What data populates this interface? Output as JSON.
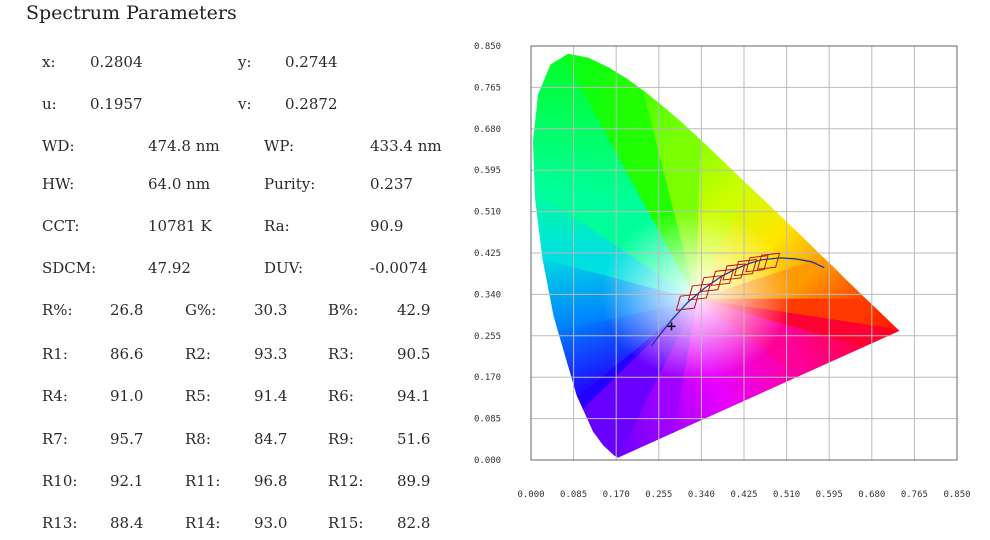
{
  "title": "Spectrum Parameters",
  "params": {
    "x": {
      "label": "x:",
      "value": "0.2804"
    },
    "y": {
      "label": "y:",
      "value": "0.2744"
    },
    "u": {
      "label": "u:",
      "value": "0.1957"
    },
    "v": {
      "label": "v:",
      "value": "0.2872"
    },
    "wd": {
      "label": "WD:",
      "value": "474.8 nm"
    },
    "wp": {
      "label": "WP:",
      "value": "433.4 nm"
    },
    "hw": {
      "label": "HW:",
      "value": "64.0 nm"
    },
    "purity": {
      "label": "Purity:",
      "value": "0.237"
    },
    "cct": {
      "label": "CCT:",
      "value": "10781 K"
    },
    "ra": {
      "label": "Ra:",
      "value": "90.9"
    },
    "sdcm": {
      "label": "SDCM:",
      "value": "47.92"
    },
    "duv": {
      "label": "DUV:",
      "value": "-0.0074"
    }
  },
  "grid": [
    [
      {
        "label": "R%:",
        "value": "26.8"
      },
      {
        "label": "G%:",
        "value": "30.3"
      },
      {
        "label": "B%:",
        "value": "42.9"
      }
    ],
    [
      {
        "label": "R1:",
        "value": "86.6"
      },
      {
        "label": "R2:",
        "value": "93.3"
      },
      {
        "label": "R3:",
        "value": "90.5"
      }
    ],
    [
      {
        "label": "R4:",
        "value": "91.0"
      },
      {
        "label": "R5:",
        "value": "91.4"
      },
      {
        "label": "R6:",
        "value": "94.1"
      }
    ],
    [
      {
        "label": "R7:",
        "value": "95.7"
      },
      {
        "label": "R8:",
        "value": "84.7"
      },
      {
        "label": "R9:",
        "value": "51.6"
      }
    ],
    [
      {
        "label": "R10:",
        "value": "92.1"
      },
      {
        "label": "R11:",
        "value": "96.8"
      },
      {
        "label": "R12:",
        "value": "89.9"
      }
    ],
    [
      {
        "label": "R13:",
        "value": "88.4"
      },
      {
        "label": "R14:",
        "value": "93.0"
      },
      {
        "label": "R15:",
        "value": "82.8"
      }
    ]
  ],
  "chart_data": {
    "type": "scatter",
    "title": "",
    "xlabel": "",
    "ylabel": "",
    "xlim": [
      0,
      0.85
    ],
    "ylim": [
      0,
      0.85
    ],
    "x_ticks": [
      "0.000",
      "0.085",
      "0.170",
      "0.255",
      "0.340",
      "0.425",
      "0.510",
      "0.595",
      "0.680",
      "0.765",
      "0.850"
    ],
    "y_ticks": [
      "0.000",
      "0.085",
      "0.170",
      "0.255",
      "0.340",
      "0.425",
      "0.510",
      "0.595",
      "0.680",
      "0.765",
      "0.850"
    ],
    "grid": true,
    "spectral_locus": [
      [
        0.174,
        0.005
      ],
      [
        0.166,
        0.009
      ],
      [
        0.144,
        0.03
      ],
      [
        0.124,
        0.058
      ],
      [
        0.091,
        0.133
      ],
      [
        0.045,
        0.295
      ],
      [
        0.023,
        0.413
      ],
      [
        0.008,
        0.538
      ],
      [
        0.004,
        0.654
      ],
      [
        0.014,
        0.75
      ],
      [
        0.039,
        0.812
      ],
      [
        0.074,
        0.834
      ],
      [
        0.115,
        0.826
      ],
      [
        0.155,
        0.806
      ],
      [
        0.193,
        0.782
      ],
      [
        0.23,
        0.754
      ],
      [
        0.266,
        0.724
      ],
      [
        0.302,
        0.692
      ],
      [
        0.337,
        0.659
      ],
      [
        0.373,
        0.624
      ],
      [
        0.408,
        0.589
      ],
      [
        0.444,
        0.554
      ],
      [
        0.479,
        0.52
      ],
      [
        0.512,
        0.487
      ],
      [
        0.545,
        0.455
      ],
      [
        0.575,
        0.424
      ],
      [
        0.603,
        0.397
      ],
      [
        0.627,
        0.372
      ],
      [
        0.648,
        0.351
      ],
      [
        0.665,
        0.334
      ],
      [
        0.692,
        0.308
      ],
      [
        0.735,
        0.265
      ]
    ],
    "planckian_locus": [
      [
        0.24,
        0.234
      ],
      [
        0.253,
        0.252
      ],
      [
        0.265,
        0.267
      ],
      [
        0.281,
        0.288
      ],
      [
        0.313,
        0.324
      ],
      [
        0.345,
        0.352
      ],
      [
        0.38,
        0.377
      ],
      [
        0.41,
        0.393
      ],
      [
        0.437,
        0.404
      ],
      [
        0.46,
        0.411
      ],
      [
        0.497,
        0.415
      ],
      [
        0.527,
        0.413
      ],
      [
        0.56,
        0.407
      ],
      [
        0.585,
        0.395
      ]
    ],
    "measured_point": {
      "x": 0.2804,
      "y": 0.2744
    },
    "colors": {
      "locus": "#2233aa",
      "ansi_boxes": "#c01010",
      "marker": "#111111",
      "grid": "#bbbbbb"
    }
  }
}
